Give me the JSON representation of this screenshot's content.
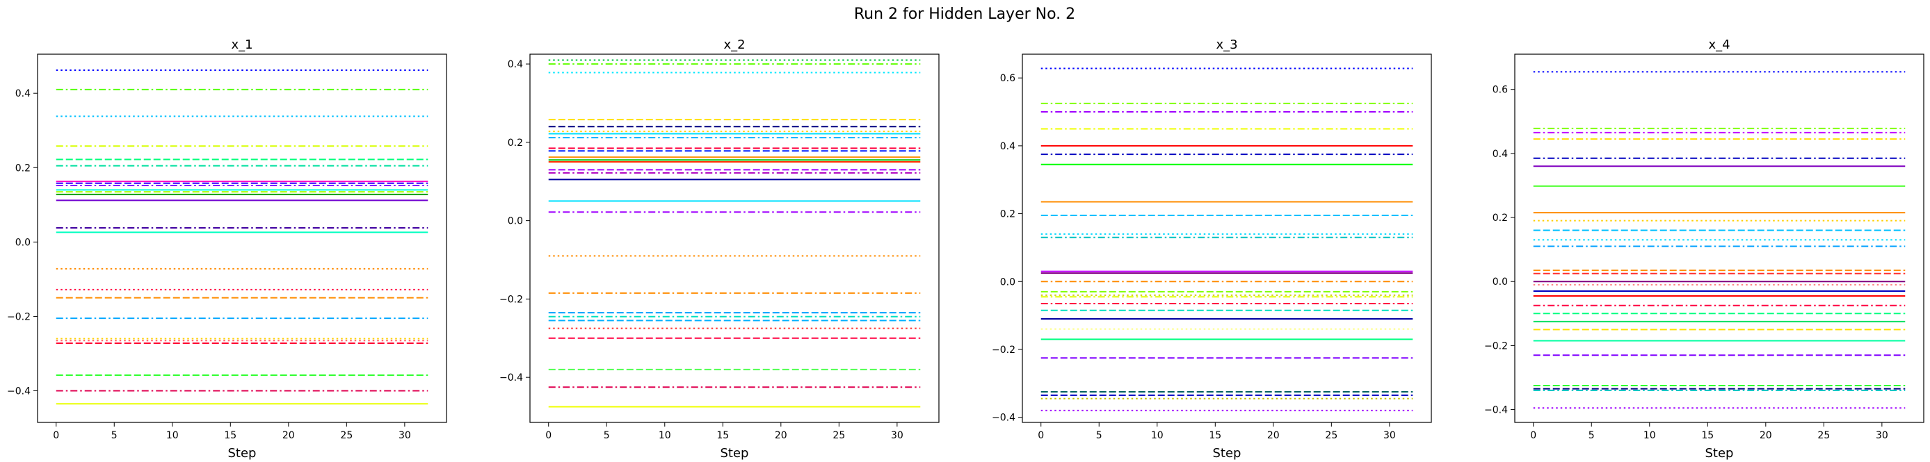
{
  "figure": {
    "title": "Run 2 for Hidden Layer No. 2"
  },
  "chart_data": [
    {
      "type": "line",
      "title": "x_1",
      "xlabel": "Step",
      "ylabel": "",
      "xlim": [
        -1.6,
        33.6
      ],
      "ylim": [
        -0.485,
        0.505
      ],
      "xticks": [
        0,
        5,
        10,
        15,
        20,
        25,
        30
      ],
      "yticks": [
        -0.4,
        -0.2,
        0.0,
        0.2,
        0.4
      ],
      "ytick_labels": [
        "−0.4",
        "−0.2",
        "0.0",
        "0.2",
        "0.4"
      ],
      "x_range": [
        0,
        32
      ],
      "series": [
        {
          "value": 0.462,
          "color": "#0000ff",
          "style": "dotted"
        },
        {
          "value": 0.41,
          "color": "#55ff00",
          "style": "dashdot"
        },
        {
          "value": 0.338,
          "color": "#00c0ff",
          "style": "dotted"
        },
        {
          "value": 0.258,
          "color": "#d8ff00",
          "style": "dashdot"
        },
        {
          "value": 0.222,
          "color": "#00ff7a",
          "style": "dashed"
        },
        {
          "value": 0.205,
          "color": "#00e0a0",
          "style": "dashdot"
        },
        {
          "value": 0.163,
          "color": "#ff00c8",
          "style": "solid"
        },
        {
          "value": 0.158,
          "color": "#3000ff",
          "style": "dashed"
        },
        {
          "value": 0.152,
          "color": "#8000ff",
          "style": "dashdot"
        },
        {
          "value": 0.14,
          "color": "#00ffd8",
          "style": "solid"
        },
        {
          "value": 0.135,
          "color": "#a8ff00",
          "style": "dashed"
        },
        {
          "value": 0.128,
          "color": "#00a000",
          "style": "solid"
        },
        {
          "value": 0.112,
          "color": "#7000d0",
          "style": "solid"
        },
        {
          "value": 0.038,
          "color": "#4000a0",
          "style": "dashdot"
        },
        {
          "value": 0.026,
          "color": "#00ffc0",
          "style": "solid"
        },
        {
          "value": -0.072,
          "color": "#ff8c00",
          "style": "dotted"
        },
        {
          "value": -0.128,
          "color": "#ff0040",
          "style": "dotted"
        },
        {
          "value": -0.15,
          "color": "#ff8c00",
          "style": "dashed"
        },
        {
          "value": -0.205,
          "color": "#00a8ff",
          "style": "dashdot"
        },
        {
          "value": -0.26,
          "color": "#ffd000",
          "style": "dotted"
        },
        {
          "value": -0.265,
          "color": "#ff6060",
          "style": "dotted"
        },
        {
          "value": -0.272,
          "color": "#ff0030",
          "style": "dashed"
        },
        {
          "value": -0.358,
          "color": "#30ff30",
          "style": "dashed"
        },
        {
          "value": -0.4,
          "color": "#e00050",
          "style": "dashdot"
        },
        {
          "value": -0.435,
          "color": "#e8ff00",
          "style": "solid"
        }
      ]
    },
    {
      "type": "line",
      "title": "x_2",
      "xlabel": "Step",
      "ylabel": "",
      "xlim": [
        -1.6,
        33.6
      ],
      "ylim": [
        -0.515,
        0.425
      ],
      "xticks": [
        0,
        5,
        10,
        15,
        20,
        25,
        30
      ],
      "yticks": [
        -0.4,
        -0.2,
        0.0,
        0.2,
        0.4
      ],
      "ytick_labels": [
        "−0.4",
        "−0.2",
        "0.0",
        "0.2",
        "0.4"
      ],
      "x_range": [
        0,
        32
      ],
      "series": [
        {
          "value": 0.41,
          "color": "#00c040",
          "style": "dotted"
        },
        {
          "value": 0.4,
          "color": "#60ff00",
          "style": "dashdot"
        },
        {
          "value": 0.378,
          "color": "#00e8ff",
          "style": "dotted"
        },
        {
          "value": 0.258,
          "color": "#ffe000",
          "style": "dashed"
        },
        {
          "value": 0.24,
          "color": "#000080",
          "style": "dashed"
        },
        {
          "value": 0.228,
          "color": "#ffd000",
          "style": "dotted"
        },
        {
          "value": 0.222,
          "color": "#00e0ff",
          "style": "solid"
        },
        {
          "value": 0.212,
          "color": "#00b0ff",
          "style": "dashdot"
        },
        {
          "value": 0.185,
          "color": "#ff0040",
          "style": "dashed"
        },
        {
          "value": 0.178,
          "color": "#0020ff",
          "style": "dashed"
        },
        {
          "value": 0.162,
          "color": "#ff8c00",
          "style": "solid"
        },
        {
          "value": 0.155,
          "color": "#00c000",
          "style": "solid"
        },
        {
          "value": 0.15,
          "color": "#ff3000",
          "style": "solid"
        },
        {
          "value": 0.13,
          "color": "#a000ff",
          "style": "dashed"
        },
        {
          "value": 0.122,
          "color": "#b000c0",
          "style": "dashdot"
        },
        {
          "value": 0.105,
          "color": "#0000a0",
          "style": "solid"
        },
        {
          "value": 0.05,
          "color": "#00e0ff",
          "style": "solid"
        },
        {
          "value": 0.022,
          "color": "#a000ff",
          "style": "dashdot"
        },
        {
          "value": -0.09,
          "color": "#ff8c00",
          "style": "dotted"
        },
        {
          "value": -0.185,
          "color": "#ff8c00",
          "style": "dashdot"
        },
        {
          "value": -0.235,
          "color": "#00a0ff",
          "style": "dashed"
        },
        {
          "value": -0.245,
          "color": "#00e0c0",
          "style": "dashdot"
        },
        {
          "value": -0.255,
          "color": "#00b0ff",
          "style": "dashed"
        },
        {
          "value": -0.275,
          "color": "#ff3030",
          "style": "dotted"
        },
        {
          "value": -0.3,
          "color": "#ff0040",
          "style": "dashed"
        },
        {
          "value": -0.38,
          "color": "#50ff50",
          "style": "dashed"
        },
        {
          "value": -0.425,
          "color": "#e00050",
          "style": "dashdot"
        },
        {
          "value": -0.475,
          "color": "#f0ff00",
          "style": "solid"
        }
      ]
    },
    {
      "type": "line",
      "title": "x_3",
      "xlabel": "Step",
      "ylabel": "",
      "xlim": [
        -1.6,
        33.6
      ],
      "ylim": [
        -0.415,
        0.67
      ],
      "xticks": [
        0,
        5,
        10,
        15,
        20,
        25,
        30
      ],
      "yticks": [
        -0.4,
        -0.2,
        0.0,
        0.2,
        0.4,
        0.6
      ],
      "ytick_labels": [
        "−0.4",
        "−0.2",
        "0.0",
        "0.2",
        "0.4",
        "0.6"
      ],
      "x_range": [
        0,
        32
      ],
      "series": [
        {
          "value": 0.628,
          "color": "#0000ff",
          "style": "dotted"
        },
        {
          "value": 0.525,
          "color": "#80ff00",
          "style": "dashdot"
        },
        {
          "value": 0.5,
          "color": "#a000ff",
          "style": "dashdot"
        },
        {
          "value": 0.45,
          "color": "#f0ff00",
          "style": "dashdot"
        },
        {
          "value": 0.4,
          "color": "#ff0000",
          "style": "solid"
        },
        {
          "value": 0.375,
          "color": "#0000c0",
          "style": "dashdot"
        },
        {
          "value": 0.345,
          "color": "#00ff00",
          "style": "solid"
        },
        {
          "value": 0.235,
          "color": "#ff8c00",
          "style": "solid"
        },
        {
          "value": 0.195,
          "color": "#00c0ff",
          "style": "dashed"
        },
        {
          "value": 0.14,
          "color": "#00d8ff",
          "style": "dotted"
        },
        {
          "value": 0.13,
          "color": "#00c0c0",
          "style": "dashdot"
        },
        {
          "value": 0.03,
          "color": "#c000ff",
          "style": "solid"
        },
        {
          "value": 0.025,
          "color": "#800080",
          "style": "solid"
        },
        {
          "value": 0.0,
          "color": "#ff8c00",
          "style": "dashdot"
        },
        {
          "value": -0.03,
          "color": "#80ff00",
          "style": "dashed"
        },
        {
          "value": -0.04,
          "color": "#d0d000",
          "style": "dotted"
        },
        {
          "value": -0.045,
          "color": "#e0ff00",
          "style": "dashdot"
        },
        {
          "value": -0.065,
          "color": "#ff0040",
          "style": "dashdot"
        },
        {
          "value": -0.085,
          "color": "#00e0c0",
          "style": "dashed"
        },
        {
          "value": -0.11,
          "color": "#0000a0",
          "style": "solid"
        },
        {
          "value": -0.14,
          "color": "#ffff80",
          "style": "dotted"
        },
        {
          "value": -0.17,
          "color": "#00ff80",
          "style": "solid"
        },
        {
          "value": -0.225,
          "color": "#8000ff",
          "style": "dashed"
        },
        {
          "value": -0.325,
          "color": "#006060",
          "style": "dashed"
        },
        {
          "value": -0.335,
          "color": "#0000c0",
          "style": "dashed"
        },
        {
          "value": -0.345,
          "color": "#c0c000",
          "style": "dotted"
        },
        {
          "value": -0.38,
          "color": "#a000ff",
          "style": "dotted"
        }
      ]
    },
    {
      "type": "line",
      "title": "x_4",
      "xlabel": "Step",
      "ylabel": "",
      "xlim": [
        -1.6,
        33.6
      ],
      "ylim": [
        -0.44,
        0.71
      ],
      "xticks": [
        0,
        5,
        10,
        15,
        20,
        25,
        30
      ],
      "yticks": [
        -0.4,
        -0.2,
        0.0,
        0.2,
        0.4,
        0.6
      ],
      "ytick_labels": [
        "−0.4",
        "−0.2",
        "0.0",
        "0.2",
        "0.4",
        "0.6"
      ],
      "x_range": [
        0,
        32
      ],
      "series": [
        {
          "value": 0.655,
          "color": "#0000ff",
          "style": "dotted"
        },
        {
          "value": 0.478,
          "color": "#80ff00",
          "style": "dashdot"
        },
        {
          "value": 0.465,
          "color": "#c000ff",
          "style": "dashdot"
        },
        {
          "value": 0.445,
          "color": "#ffe000",
          "style": "dashdot"
        },
        {
          "value": 0.385,
          "color": "#0000c0",
          "style": "dashdot"
        },
        {
          "value": 0.36,
          "color": "#8000c0",
          "style": "solid"
        },
        {
          "value": 0.298,
          "color": "#50ff30",
          "style": "solid"
        },
        {
          "value": 0.215,
          "color": "#ff8c00",
          "style": "solid"
        },
        {
          "value": 0.19,
          "color": "#ffd000",
          "style": "dotted"
        },
        {
          "value": 0.16,
          "color": "#00c0ff",
          "style": "dashed"
        },
        {
          "value": 0.13,
          "color": "#00e0ff",
          "style": "dotted"
        },
        {
          "value": 0.11,
          "color": "#00a0ff",
          "style": "dashdot"
        },
        {
          "value": 0.035,
          "color": "#ff8c00",
          "style": "dashed"
        },
        {
          "value": 0.025,
          "color": "#ff3030",
          "style": "dashed"
        },
        {
          "value": 0.0,
          "color": "#800080",
          "style": "solid"
        },
        {
          "value": -0.01,
          "color": "#ff8080",
          "style": "dotted"
        },
        {
          "value": -0.03,
          "color": "#0000c0",
          "style": "solid"
        },
        {
          "value": -0.045,
          "color": "#ff0000",
          "style": "solid"
        },
        {
          "value": -0.075,
          "color": "#ff0040",
          "style": "dashdot"
        },
        {
          "value": -0.1,
          "color": "#00ff80",
          "style": "dashed"
        },
        {
          "value": -0.125,
          "color": "#00e060",
          "style": "solid"
        },
        {
          "value": -0.15,
          "color": "#ffe000",
          "style": "dashed"
        },
        {
          "value": -0.185,
          "color": "#00ffa0",
          "style": "solid"
        },
        {
          "value": -0.23,
          "color": "#8000ff",
          "style": "dashed"
        },
        {
          "value": -0.325,
          "color": "#30ff30",
          "style": "dashed"
        },
        {
          "value": -0.335,
          "color": "#000080",
          "style": "dashed"
        },
        {
          "value": -0.34,
          "color": "#00c0c0",
          "style": "dashdot"
        },
        {
          "value": -0.395,
          "color": "#a000ff",
          "style": "dotted"
        }
      ]
    }
  ]
}
